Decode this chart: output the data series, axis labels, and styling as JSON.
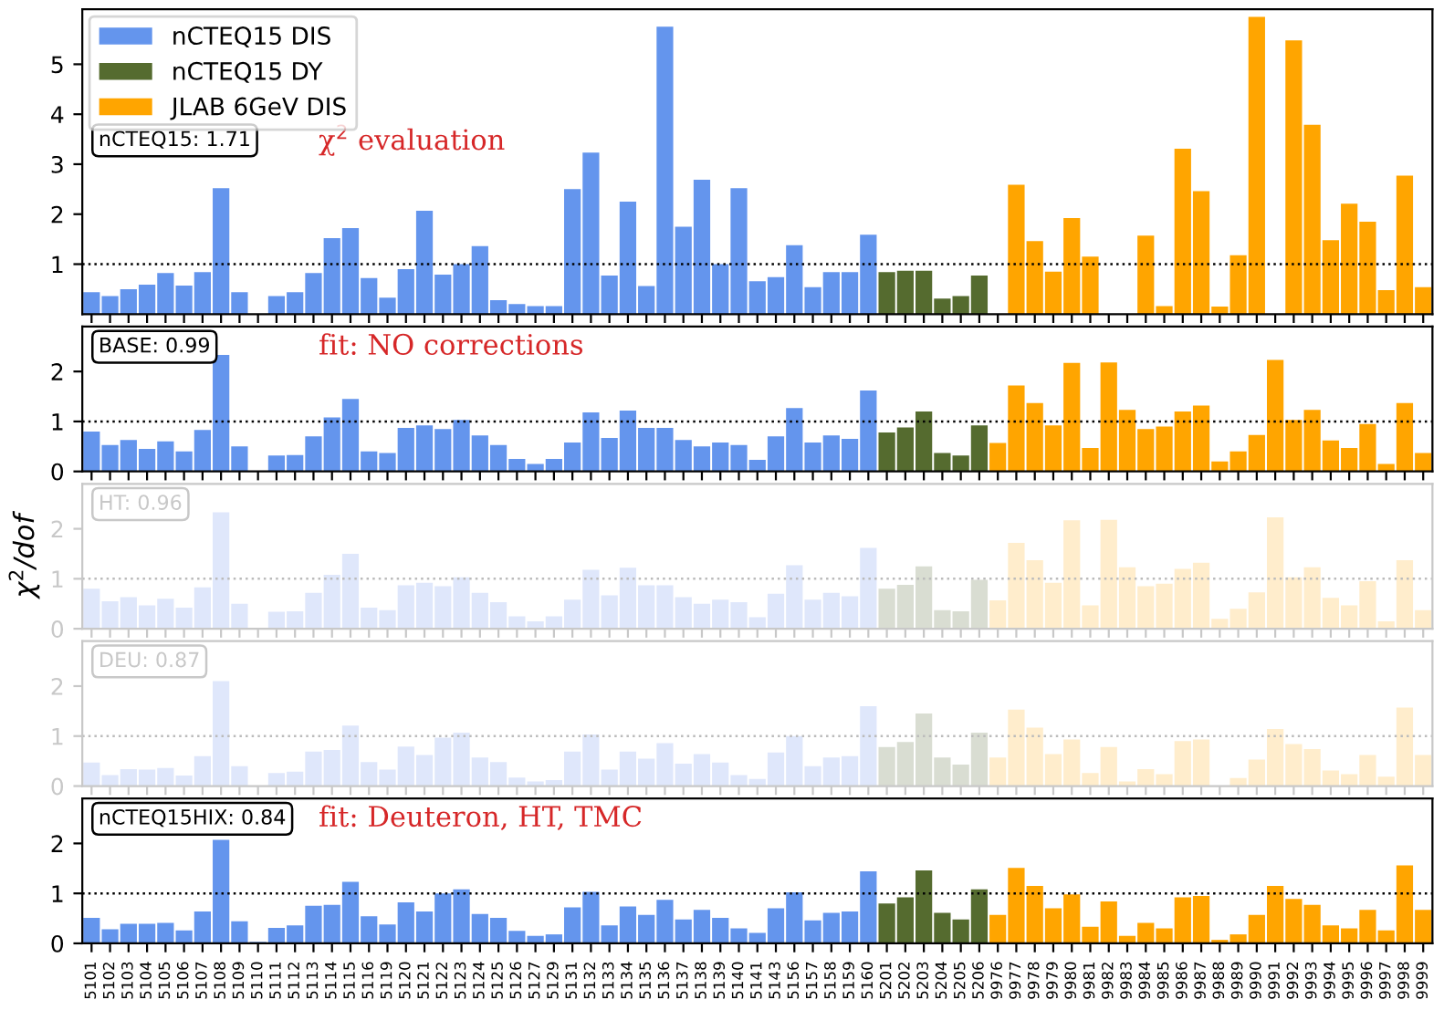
{
  "chart_data": [
    {
      "type": "bar",
      "categories": [
        "5101",
        "5102",
        "5103",
        "5104",
        "5105",
        "5106",
        "5107",
        "5108",
        "5109",
        "5110",
        "5111",
        "5112",
        "5113",
        "5114",
        "5115",
        "5116",
        "5119",
        "5120",
        "5121",
        "5122",
        "5123",
        "5124",
        "5125",
        "5126",
        "5127",
        "5129",
        "5131",
        "5132",
        "5133",
        "5134",
        "5135",
        "5136",
        "5137",
        "5138",
        "5139",
        "5140",
        "5141",
        "5143",
        "5156",
        "5157",
        "5158",
        "5159",
        "5160",
        "5201",
        "5202",
        "5203",
        "5204",
        "5205",
        "5206",
        "9976",
        "9977",
        "9978",
        "9979",
        "9980",
        "9981",
        "9982",
        "9983",
        "9984",
        "9985",
        "9986",
        "9987",
        "9988",
        "9989",
        "9990",
        "9991",
        "9992",
        "9993",
        "9994",
        "9995",
        "9996",
        "9997",
        "9998",
        "9999"
      ],
      "ylim": [
        0,
        6.1
      ],
      "yticks": [
        1,
        2,
        3,
        4,
        5
      ],
      "tick_labels": "y",
      "legend": "top left",
      "annotations": [
        "nCTEQ15: 1.71",
        "χ$^{2}$ evaluation"
      ],
      "ref_lines": [
        {
          "axis": "y",
          "value": 1,
          "color": "#000000",
          "line_style": "dotted"
        }
      ],
      "series": [
        {
          "name": "nCTEQ15 DIS",
          "color": "#6495ed",
          "values": [
            0.44,
            0.36,
            0.5,
            0.59,
            0.82,
            0.57,
            0.84,
            2.52,
            0.44,
            null,
            0.36,
            0.44,
            0.82,
            1.52,
            1.72,
            0.72,
            0.33,
            0.9,
            2.07,
            0.79,
            1.0,
            1.36,
            0.28,
            0.2,
            0.16,
            0.16,
            2.5,
            3.23,
            0.77,
            2.25,
            0.56,
            5.75,
            1.75,
            2.69,
            1.0,
            2.52,
            0.66,
            0.74,
            1.38,
            0.54,
            0.84,
            0.84,
            1.59,
            null,
            null,
            null,
            null,
            null,
            null,
            null,
            null,
            null,
            null,
            null,
            null,
            null,
            null,
            null,
            null,
            null,
            null,
            null,
            null,
            null,
            null,
            null,
            null,
            null,
            null,
            null,
            null,
            null,
            null
          ]
        },
        {
          "name": "nCTEQ15 DY",
          "color": "#556b2f",
          "values": [
            null,
            null,
            null,
            null,
            null,
            null,
            null,
            null,
            null,
            null,
            null,
            null,
            null,
            null,
            null,
            null,
            null,
            null,
            null,
            null,
            null,
            null,
            null,
            null,
            null,
            null,
            null,
            null,
            null,
            null,
            null,
            null,
            null,
            null,
            null,
            null,
            null,
            null,
            null,
            null,
            null,
            null,
            null,
            0.84,
            0.87,
            0.87,
            0.31,
            0.36,
            0.77,
            null,
            null,
            null,
            null,
            null,
            null,
            null,
            null,
            null,
            null,
            null,
            null,
            null,
            null,
            null,
            null,
            null,
            null,
            null,
            null,
            null,
            null,
            null,
            null
          ]
        },
        {
          "name": "JLAB 6GeV DIS",
          "color": "#ffa500",
          "values": [
            null,
            null,
            null,
            null,
            null,
            null,
            null,
            null,
            null,
            null,
            null,
            null,
            null,
            null,
            null,
            null,
            null,
            null,
            null,
            null,
            null,
            null,
            null,
            null,
            null,
            null,
            null,
            null,
            null,
            null,
            null,
            null,
            null,
            null,
            null,
            null,
            null,
            null,
            null,
            null,
            null,
            null,
            null,
            null,
            null,
            null,
            null,
            null,
            null,
            null,
            2.59,
            1.46,
            0.85,
            1.92,
            1.15,
            null,
            null,
            1.57,
            0.16,
            3.31,
            2.46,
            0.15,
            1.18,
            5.95,
            null,
            5.48,
            3.79,
            1.48,
            2.21,
            1.85,
            0.48,
            2.77,
            0.54
          ]
        }
      ]
    },
    {
      "type": "bar",
      "categories": [
        "5101",
        "5102",
        "5103",
        "5104",
        "5105",
        "5106",
        "5107",
        "5108",
        "5109",
        "5110",
        "5111",
        "5112",
        "5113",
        "5114",
        "5115",
        "5116",
        "5119",
        "5120",
        "5121",
        "5122",
        "5123",
        "5124",
        "5125",
        "5126",
        "5127",
        "5129",
        "5131",
        "5132",
        "5133",
        "5134",
        "5135",
        "5136",
        "5137",
        "5138",
        "5139",
        "5140",
        "5141",
        "5143",
        "5156",
        "5157",
        "5158",
        "5159",
        "5160",
        "5201",
        "5202",
        "5203",
        "5204",
        "5205",
        "5206",
        "9976",
        "9977",
        "9978",
        "9979",
        "9980",
        "9981",
        "9982",
        "9983",
        "9984",
        "9985",
        "9986",
        "9987",
        "9988",
        "9989",
        "9990",
        "9991",
        "9992",
        "9993",
        "9994",
        "9995",
        "9996",
        "9997",
        "9998",
        "9999"
      ],
      "ylim": [
        0,
        2.9
      ],
      "yticks": [
        0,
        1,
        2
      ],
      "tick_labels": "y",
      "annotations": [
        "BASE: 0.99",
        "fit: NO corrections"
      ],
      "ref_lines": [
        {
          "axis": "y",
          "value": 1,
          "color": "#000000",
          "line_style": "dotted"
        }
      ],
      "series": [
        {
          "color": "#6495ed",
          "values": [
            0.8,
            0.53,
            0.63,
            0.45,
            0.6,
            0.4,
            0.83,
            2.33,
            0.5,
            null,
            0.32,
            0.33,
            0.7,
            1.08,
            1.45,
            0.4,
            0.37,
            0.87,
            0.92,
            0.85,
            1.03,
            0.72,
            0.53,
            0.25,
            0.15,
            0.25,
            0.58,
            1.18,
            0.67,
            1.22,
            0.87,
            0.87,
            0.63,
            0.5,
            0.58,
            0.53,
            0.23,
            0.7,
            1.27,
            0.58,
            0.72,
            0.65,
            1.62,
            null,
            null,
            null,
            null,
            null,
            null,
            null,
            null,
            null,
            null,
            null,
            null,
            null,
            null,
            null,
            null,
            null,
            null,
            null,
            null,
            null,
            null,
            null,
            null,
            null,
            null,
            null,
            null,
            null,
            null
          ]
        },
        {
          "color": "#556b2f",
          "values": [
            null,
            null,
            null,
            null,
            null,
            null,
            null,
            null,
            null,
            null,
            null,
            null,
            null,
            null,
            null,
            null,
            null,
            null,
            null,
            null,
            null,
            null,
            null,
            null,
            null,
            null,
            null,
            null,
            null,
            null,
            null,
            null,
            null,
            null,
            null,
            null,
            null,
            null,
            null,
            null,
            null,
            null,
            null,
            0.78,
            0.88,
            1.2,
            0.37,
            0.32,
            0.92,
            null,
            null,
            null,
            null,
            null,
            null,
            null,
            null,
            null,
            null,
            null,
            null,
            null,
            null,
            null,
            null,
            null,
            null,
            null,
            null,
            null,
            null,
            null,
            null
          ]
        },
        {
          "color": "#ffa500",
          "values": [
            null,
            null,
            null,
            null,
            null,
            null,
            null,
            null,
            null,
            null,
            null,
            null,
            null,
            null,
            null,
            null,
            null,
            null,
            null,
            null,
            null,
            null,
            null,
            null,
            null,
            null,
            null,
            null,
            null,
            null,
            null,
            null,
            null,
            null,
            null,
            null,
            null,
            null,
            null,
            null,
            null,
            null,
            null,
            null,
            null,
            null,
            null,
            null,
            null,
            0.57,
            1.72,
            1.37,
            0.92,
            2.17,
            0.47,
            2.18,
            1.23,
            0.85,
            0.9,
            1.2,
            1.32,
            0.2,
            0.4,
            0.73,
            2.23,
            1.03,
            1.23,
            0.62,
            0.47,
            0.95,
            0.15,
            1.37,
            0.37
          ]
        }
      ]
    },
    {
      "type": "bar",
      "categories": [
        "5101",
        "5102",
        "5103",
        "5104",
        "5105",
        "5106",
        "5107",
        "5108",
        "5109",
        "5110",
        "5111",
        "5112",
        "5113",
        "5114",
        "5115",
        "5116",
        "5119",
        "5120",
        "5121",
        "5122",
        "5123",
        "5124",
        "5125",
        "5126",
        "5127",
        "5129",
        "5131",
        "5132",
        "5133",
        "5134",
        "5135",
        "5136",
        "5137",
        "5138",
        "5139",
        "5140",
        "5141",
        "5143",
        "5156",
        "5157",
        "5158",
        "5159",
        "5160",
        "5201",
        "5202",
        "5203",
        "5204",
        "5205",
        "5206",
        "9976",
        "9977",
        "9978",
        "9979",
        "9980",
        "9981",
        "9982",
        "9983",
        "9984",
        "9985",
        "9986",
        "9987",
        "9988",
        "9989",
        "9990",
        "9991",
        "9992",
        "9993",
        "9994",
        "9995",
        "9996",
        "9997",
        "9998",
        "9999"
      ],
      "ylim": [
        0,
        2.9
      ],
      "yticks": [
        0,
        1,
        2
      ],
      "tick_labels": "y",
      "ylabel": "χ$^{2}$/dof",
      "annotations": [
        "HT: 0.96"
      ],
      "ref_lines": [
        {
          "axis": "y",
          "value": 1,
          "color": "#bbbbbb",
          "line_style": "dotted"
        }
      ],
      "series": [
        {
          "color": "#dfe7fb",
          "values": [
            0.8,
            0.55,
            0.63,
            0.47,
            0.6,
            0.42,
            0.83,
            2.33,
            0.5,
            null,
            0.34,
            0.35,
            0.72,
            1.08,
            1.5,
            0.42,
            0.37,
            0.87,
            0.92,
            0.85,
            1.03,
            0.72,
            0.53,
            0.25,
            0.15,
            0.25,
            0.58,
            1.18,
            0.67,
            1.22,
            0.87,
            0.87,
            0.63,
            0.5,
            0.58,
            0.53,
            0.23,
            0.7,
            1.27,
            0.58,
            0.72,
            0.65,
            1.62,
            null,
            null,
            null,
            null,
            null,
            null,
            null,
            null,
            null,
            null,
            null,
            null,
            null,
            null,
            null,
            null,
            null,
            null,
            null,
            null,
            null,
            null,
            null,
            null,
            null,
            null,
            null,
            null,
            null,
            null
          ]
        },
        {
          "color": "#d9ddd2",
          "values": [
            null,
            null,
            null,
            null,
            null,
            null,
            null,
            null,
            null,
            null,
            null,
            null,
            null,
            null,
            null,
            null,
            null,
            null,
            null,
            null,
            null,
            null,
            null,
            null,
            null,
            null,
            null,
            null,
            null,
            null,
            null,
            null,
            null,
            null,
            null,
            null,
            null,
            null,
            null,
            null,
            null,
            null,
            null,
            0.8,
            0.88,
            1.25,
            0.37,
            0.35,
            0.98,
            null,
            null,
            null,
            null,
            null,
            null,
            null,
            null,
            null,
            null,
            null,
            null,
            null,
            null,
            null,
            null,
            null,
            null,
            null,
            null,
            null,
            null,
            null,
            null
          ]
        },
        {
          "color": "#ffedcc",
          "values": [
            null,
            null,
            null,
            null,
            null,
            null,
            null,
            null,
            null,
            null,
            null,
            null,
            null,
            null,
            null,
            null,
            null,
            null,
            null,
            null,
            null,
            null,
            null,
            null,
            null,
            null,
            null,
            null,
            null,
            null,
            null,
            null,
            null,
            null,
            null,
            null,
            null,
            null,
            null,
            null,
            null,
            null,
            null,
            null,
            null,
            null,
            null,
            null,
            null,
            0.57,
            1.72,
            1.37,
            0.92,
            2.17,
            0.47,
            2.18,
            1.23,
            0.85,
            0.9,
            1.2,
            1.32,
            0.2,
            0.4,
            0.73,
            2.23,
            1.03,
            1.23,
            0.62,
            0.47,
            0.95,
            0.15,
            1.37,
            0.37
          ]
        }
      ]
    },
    {
      "type": "bar",
      "categories": [
        "5101",
        "5102",
        "5103",
        "5104",
        "5105",
        "5106",
        "5107",
        "5108",
        "5109",
        "5110",
        "5111",
        "5112",
        "5113",
        "5114",
        "5115",
        "5116",
        "5119",
        "5120",
        "5121",
        "5122",
        "5123",
        "5124",
        "5125",
        "5126",
        "5127",
        "5129",
        "5131",
        "5132",
        "5133",
        "5134",
        "5135",
        "5136",
        "5137",
        "5138",
        "5139",
        "5140",
        "5141",
        "5143",
        "5156",
        "5157",
        "5158",
        "5159",
        "5160",
        "5201",
        "5202",
        "5203",
        "5204",
        "5205",
        "5206",
        "9976",
        "9977",
        "9978",
        "9979",
        "9980",
        "9981",
        "9982",
        "9983",
        "9984",
        "9985",
        "9986",
        "9987",
        "9988",
        "9989",
        "9990",
        "9991",
        "9992",
        "9993",
        "9994",
        "9995",
        "9996",
        "9997",
        "9998",
        "9999"
      ],
      "ylim": [
        0,
        2.9
      ],
      "yticks": [
        0,
        1,
        2
      ],
      "tick_labels": "y",
      "annotations": [
        "DEU: 0.87"
      ],
      "ref_lines": [
        {
          "axis": "y",
          "value": 1,
          "color": "#bbbbbb",
          "line_style": "dotted"
        }
      ],
      "series": [
        {
          "color": "#dfe7fb",
          "values": [
            0.47,
            0.22,
            0.34,
            0.33,
            0.36,
            0.21,
            0.6,
            2.1,
            0.4,
            null,
            0.26,
            0.29,
            0.69,
            0.72,
            1.21,
            0.48,
            0.33,
            0.79,
            0.62,
            0.97,
            1.07,
            0.57,
            0.48,
            0.17,
            0.09,
            0.12,
            0.69,
            1.03,
            0.33,
            0.69,
            0.55,
            0.86,
            0.45,
            0.64,
            0.47,
            0.22,
            0.14,
            0.67,
            1.0,
            0.4,
            0.57,
            0.6,
            1.6,
            null,
            null,
            null,
            null,
            null,
            null,
            null,
            null,
            null,
            null,
            null,
            null,
            null,
            null,
            null,
            null,
            null,
            null,
            null,
            null,
            null,
            null,
            null,
            null,
            null,
            null,
            null,
            null,
            null,
            null
          ]
        },
        {
          "color": "#d9ddd2",
          "values": [
            null,
            null,
            null,
            null,
            null,
            null,
            null,
            null,
            null,
            null,
            null,
            null,
            null,
            null,
            null,
            null,
            null,
            null,
            null,
            null,
            null,
            null,
            null,
            null,
            null,
            null,
            null,
            null,
            null,
            null,
            null,
            null,
            null,
            null,
            null,
            null,
            null,
            null,
            null,
            null,
            null,
            null,
            null,
            0.78,
            0.88,
            1.45,
            0.57,
            0.43,
            1.07,
            null,
            null,
            null,
            null,
            null,
            null,
            null,
            null,
            null,
            null,
            null,
            null,
            null,
            null,
            null,
            null,
            null,
            null,
            null,
            null,
            null,
            null,
            null,
            null
          ]
        },
        {
          "color": "#ffedcc",
          "values": [
            null,
            null,
            null,
            null,
            null,
            null,
            null,
            null,
            null,
            null,
            null,
            null,
            null,
            null,
            null,
            null,
            null,
            null,
            null,
            null,
            null,
            null,
            null,
            null,
            null,
            null,
            null,
            null,
            null,
            null,
            null,
            null,
            null,
            null,
            null,
            null,
            null,
            null,
            null,
            null,
            null,
            null,
            null,
            null,
            null,
            null,
            null,
            null,
            null,
            0.57,
            1.53,
            1.17,
            0.64,
            0.93,
            0.26,
            0.78,
            0.09,
            0.34,
            0.24,
            0.9,
            0.93,
            null,
            0.16,
            0.53,
            1.14,
            0.84,
            0.74,
            0.31,
            0.24,
            0.62,
            0.19,
            1.57,
            0.62
          ]
        }
      ]
    },
    {
      "type": "bar",
      "categories": [
        "5101",
        "5102",
        "5103",
        "5104",
        "5105",
        "5106",
        "5107",
        "5108",
        "5109",
        "5110",
        "5111",
        "5112",
        "5113",
        "5114",
        "5115",
        "5116",
        "5119",
        "5120",
        "5121",
        "5122",
        "5123",
        "5124",
        "5125",
        "5126",
        "5127",
        "5129",
        "5131",
        "5132",
        "5133",
        "5134",
        "5135",
        "5136",
        "5137",
        "5138",
        "5139",
        "5140",
        "5141",
        "5143",
        "5156",
        "5157",
        "5158",
        "5159",
        "5160",
        "5201",
        "5202",
        "5203",
        "5204",
        "5205",
        "5206",
        "9976",
        "9977",
        "9978",
        "9979",
        "9980",
        "9981",
        "9982",
        "9983",
        "9984",
        "9985",
        "9986",
        "9987",
        "9988",
        "9989",
        "9990",
        "9991",
        "9992",
        "9993",
        "9994",
        "9995",
        "9996",
        "9997",
        "9998",
        "9999"
      ],
      "ylim": [
        0,
        2.9
      ],
      "yticks": [
        0,
        1,
        2
      ],
      "annotations": [
        "nCTEQ15HIX: 0.84",
        "fit: Deuteron, HT, TMC"
      ],
      "ref_lines": [
        {
          "axis": "y",
          "value": 1,
          "color": "#000000",
          "line_style": "dotted"
        }
      ],
      "series": [
        {
          "color": "#6495ed",
          "values": [
            0.51,
            0.28,
            0.39,
            0.39,
            0.41,
            0.26,
            0.64,
            2.07,
            0.44,
            0.03,
            0.31,
            0.36,
            0.75,
            0.77,
            1.23,
            0.54,
            0.38,
            0.82,
            0.64,
            1.0,
            1.08,
            0.59,
            0.51,
            0.25,
            0.15,
            0.18,
            0.72,
            1.03,
            0.36,
            0.74,
            0.57,
            0.87,
            0.48,
            0.67,
            0.51,
            0.3,
            0.21,
            0.7,
            1.02,
            0.46,
            0.61,
            0.64,
            1.44,
            null,
            null,
            null,
            null,
            null,
            null,
            null,
            null,
            null,
            null,
            null,
            null,
            null,
            null,
            null,
            null,
            null,
            null,
            null,
            null,
            null,
            null,
            null,
            null,
            null,
            null,
            null,
            null,
            null,
            null
          ]
        },
        {
          "color": "#556b2f",
          "values": [
            null,
            null,
            null,
            null,
            null,
            null,
            null,
            null,
            null,
            null,
            null,
            null,
            null,
            null,
            null,
            null,
            null,
            null,
            null,
            null,
            null,
            null,
            null,
            null,
            null,
            null,
            null,
            null,
            null,
            null,
            null,
            null,
            null,
            null,
            null,
            null,
            null,
            null,
            null,
            null,
            null,
            null,
            null,
            0.8,
            0.92,
            1.46,
            0.61,
            0.48,
            1.08,
            null,
            null,
            null,
            null,
            null,
            null,
            null,
            null,
            null,
            null,
            null,
            null,
            null,
            null,
            null,
            null,
            null,
            null,
            null,
            null,
            null,
            null,
            null,
            null
          ]
        },
        {
          "color": "#ffa500",
          "values": [
            null,
            null,
            null,
            null,
            null,
            null,
            null,
            null,
            null,
            null,
            null,
            null,
            null,
            null,
            null,
            null,
            null,
            null,
            null,
            null,
            null,
            null,
            null,
            null,
            null,
            null,
            null,
            null,
            null,
            null,
            null,
            null,
            null,
            null,
            null,
            null,
            null,
            null,
            null,
            null,
            null,
            null,
            null,
            null,
            null,
            null,
            null,
            null,
            null,
            0.57,
            1.51,
            1.15,
            0.7,
            0.98,
            0.33,
            0.84,
            0.15,
            0.41,
            0.3,
            0.92,
            0.95,
            0.07,
            0.18,
            0.57,
            1.15,
            0.89,
            0.77,
            0.36,
            0.3,
            0.67,
            0.26,
            1.56,
            0.67
          ]
        }
      ]
    }
  ]
}
